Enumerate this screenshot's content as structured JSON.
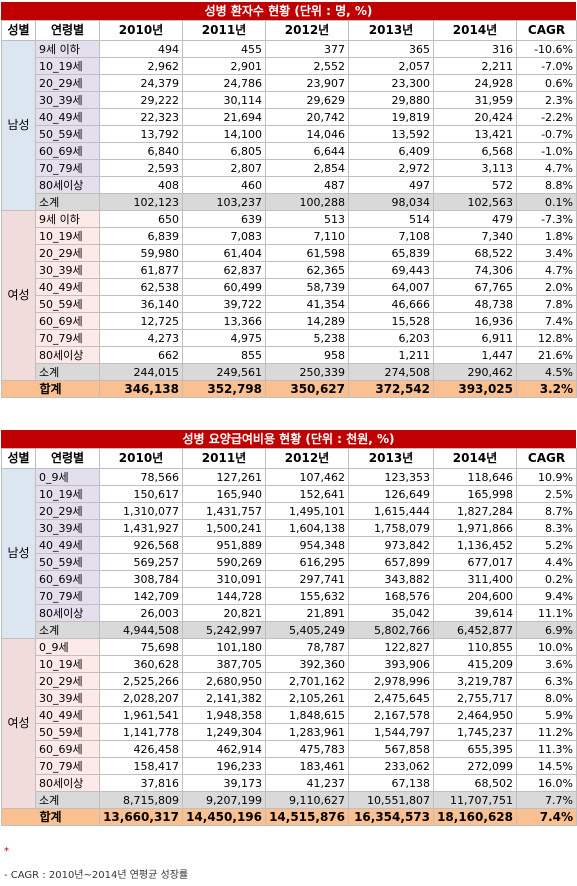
{
  "tables": [
    {
      "title": "성병 환자수 현황 (단위 : 명, %)",
      "header": [
        "성별",
        "연령별",
        "2010년",
        "2011년",
        "2012년",
        "2013년",
        "2014년",
        "CAGR"
      ],
      "groups": [
        {
          "name": "남성",
          "rows": [
            [
              "9세 이하",
              "494",
              "455",
              "377",
              "365",
              "316",
              "-10.6%"
            ],
            [
              "10_19세",
              "2,962",
              "2,901",
              "2,552",
              "2,057",
              "2,211",
              "-7.0%"
            ],
            [
              "20_29세",
              "24,379",
              "24,786",
              "23,907",
              "23,300",
              "24,928",
              "0.6%"
            ],
            [
              "30_39세",
              "29,222",
              "30,114",
              "29,629",
              "29,880",
              "31,959",
              "2.3%"
            ],
            [
              "40_49세",
              "22,323",
              "21,694",
              "20,742",
              "19,819",
              "20,424",
              "-2.2%"
            ],
            [
              "50_59세",
              "13,792",
              "14,100",
              "14,046",
              "13,592",
              "13,421",
              "-0.7%"
            ],
            [
              "60_69세",
              "6,840",
              "6,805",
              "6,644",
              "6,409",
              "6,568",
              "-1.0%"
            ],
            [
              "70_79세",
              "2,593",
              "2,807",
              "2,854",
              "2,972",
              "3,113",
              "4.7%"
            ],
            [
              "80세이상",
              "408",
              "460",
              "487",
              "497",
              "572",
              "8.8%"
            ]
          ],
          "subtotal": [
            "소계",
            "102,123",
            "103,237",
            "100,288",
            "98,034",
            "102,563",
            "0.1%"
          ]
        },
        {
          "name": "여성",
          "rows": [
            [
              "9세 이하",
              "650",
              "639",
              "513",
              "514",
              "479",
              "-7.3%"
            ],
            [
              "10_19세",
              "6,839",
              "7,083",
              "7,110",
              "7,108",
              "7,340",
              "1.8%"
            ],
            [
              "20_29세",
              "59,980",
              "61,404",
              "61,598",
              "65,839",
              "68,522",
              "3.4%"
            ],
            [
              "30_39세",
              "61,877",
              "62,837",
              "62,365",
              "69,443",
              "74,306",
              "4.7%"
            ],
            [
              "40_49세",
              "62,538",
              "60,499",
              "58,739",
              "64,007",
              "67,765",
              "2.0%"
            ],
            [
              "50_59세",
              "36,140",
              "39,722",
              "41,354",
              "46,666",
              "48,738",
              "7.8%"
            ],
            [
              "60_69세",
              "12,725",
              "13,366",
              "14,289",
              "15,528",
              "16,936",
              "7.4%"
            ],
            [
              "70_79세",
              "4,273",
              "4,975",
              "5,238",
              "6,203",
              "6,911",
              "12.8%"
            ],
            [
              "80세이상",
              "662",
              "855",
              "958",
              "1,211",
              "1,447",
              "21.6%"
            ]
          ],
          "subtotal": [
            "소계",
            "244,015",
            "249,561",
            "250,339",
            "274,508",
            "290,462",
            "4.5%"
          ]
        }
      ],
      "total": [
        "합계",
        "346,138",
        "352,798",
        "350,627",
        "372,542",
        "393,025",
        "3.2%"
      ]
    },
    {
      "title": "성병 요양급여비용 현황 (단위 : 천원, %)",
      "header": [
        "성별",
        "연령별",
        "2010년",
        "2011년",
        "2012년",
        "2013년",
        "2014년",
        "CAGR"
      ],
      "groups": [
        {
          "name": "남성",
          "rows": [
            [
              "0_9세",
              "78,566",
              "127,261",
              "107,462",
              "123,353",
              "118,646",
              "10.9%"
            ],
            [
              "10_19세",
              "150,617",
              "165,940",
              "152,641",
              "126,649",
              "165,998",
              "2.5%"
            ],
            [
              "20_29세",
              "1,310,077",
              "1,431,757",
              "1,495,101",
              "1,615,444",
              "1,827,284",
              "8.7%"
            ],
            [
              "30_39세",
              "1,431,927",
              "1,500,241",
              "1,604,138",
              "1,758,079",
              "1,971,866",
              "8.3%"
            ],
            [
              "40_49세",
              "926,568",
              "951,889",
              "954,348",
              "973,842",
              "1,136,452",
              "5.2%"
            ],
            [
              "50_59세",
              "569,257",
              "590,269",
              "616,295",
              "657,899",
              "677,017",
              "4.4%"
            ],
            [
              "60_69세",
              "308,784",
              "310,091",
              "297,741",
              "343,882",
              "311,400",
              "0.2%"
            ],
            [
              "70_79세",
              "142,709",
              "144,728",
              "155,632",
              "168,576",
              "204,600",
              "9.4%"
            ],
            [
              "80세이상",
              "26,003",
              "20,821",
              "21,891",
              "35,042",
              "39,614",
              "11.1%"
            ]
          ],
          "subtotal": [
            "소계",
            "4,944,508",
            "5,242,997",
            "5,405,249",
            "5,802,766",
            "6,452,877",
            "6.9%"
          ]
        },
        {
          "name": "여성",
          "rows": [
            [
              "0_9세",
              "75,698",
              "101,180",
              "78,787",
              "122,827",
              "110,855",
              "10.0%"
            ],
            [
              "10_19세",
              "360,628",
              "387,705",
              "392,360",
              "393,906",
              "415,209",
              "3.6%"
            ],
            [
              "20_29세",
              "2,525,266",
              "2,680,950",
              "2,701,162",
              "2,978,996",
              "3,219,787",
              "6.3%"
            ],
            [
              "30_39세",
              "2,028,207",
              "2,141,382",
              "2,105,261",
              "2,475,645",
              "2,755,717",
              "8.0%"
            ],
            [
              "40_49세",
              "1,961,541",
              "1,948,358",
              "1,848,615",
              "2,167,578",
              "2,464,950",
              "5.9%"
            ],
            [
              "50_59세",
              "1,141,778",
              "1,249,304",
              "1,283,961",
              "1,544,797",
              "1,745,237",
              "11.2%"
            ],
            [
              "60_69세",
              "426,458",
              "462,914",
              "475,783",
              "567,858",
              "655,395",
              "11.3%"
            ],
            [
              "70_79세",
              "158,417",
              "196,233",
              "183,461",
              "233,062",
              "272,099",
              "14.5%"
            ],
            [
              "80세이상",
              "37,816",
              "39,173",
              "41,237",
              "67,138",
              "68,502",
              "16.0%"
            ]
          ],
          "subtotal": [
            "소계",
            "8,715,809",
            "9,207,199",
            "9,110,627",
            "10,551,807",
            "11,707,751",
            "7.7%"
          ]
        }
      ],
      "total": [
        "합계",
        "13,660,317",
        "14,450,196",
        "14,515,876",
        "16,354,573",
        "18,160,628",
        "7.4%"
      ]
    }
  ],
  "notes": [
    "*",
    "- CAGR : 2010년~2014년 연평균 성장률"
  ]
}
